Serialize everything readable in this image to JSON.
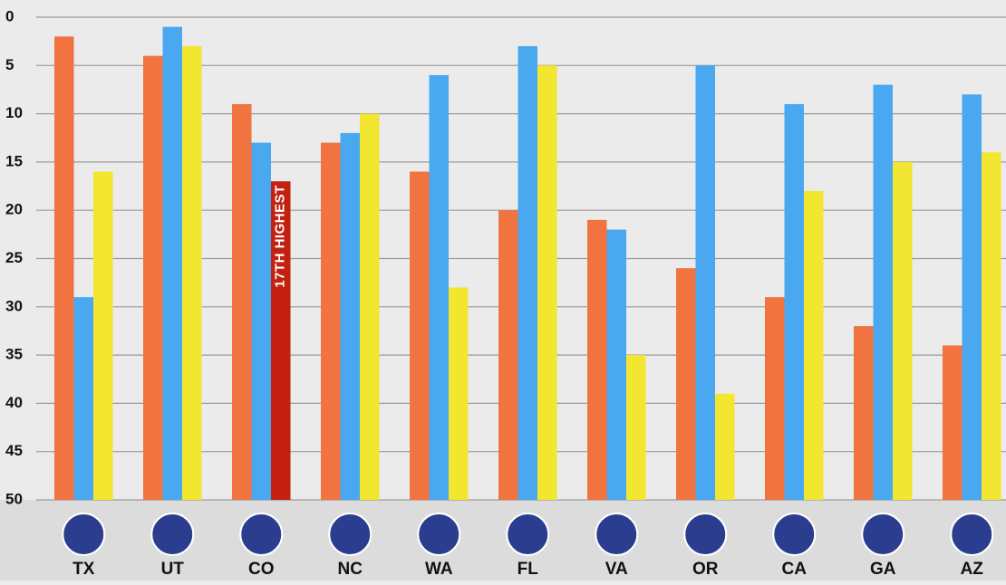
{
  "chart_data": {
    "type": "bar",
    "invert_y": true,
    "grid": true,
    "categories": [
      "TX",
      "UT",
      "CO",
      "NC",
      "WA",
      "FL",
      "VA",
      "OR",
      "CA",
      "GA",
      "AZ"
    ],
    "series": [
      {
        "color": "#f07340",
        "values": [
          2,
          4,
          9,
          13,
          16,
          20,
          21,
          26,
          29,
          32,
          34
        ]
      },
      {
        "color": "#4aa8f0",
        "values": [
          29,
          1,
          13,
          12,
          6,
          3,
          22,
          5,
          9,
          7,
          8
        ]
      },
      {
        "color": "#f2e630",
        "values": [
          16,
          3,
          17,
          10,
          28,
          5,
          35,
          39,
          18,
          15,
          14
        ],
        "colors": [
          "#f2e630",
          "#f2e630",
          "#c3200f",
          "#f2e630",
          "#f2e630",
          "#f2e630",
          "#f2e630",
          "#f2e630",
          "#f2e630",
          "#f2e630",
          "#f2e630"
        ],
        "value_labels": [
          null,
          null,
          "17TH HIGHEST",
          null,
          null,
          null,
          null,
          null,
          null,
          null,
          null
        ]
      }
    ],
    "ylim": [
      0,
      50
    ],
    "yticks": [
      0,
      5,
      10,
      15,
      20,
      25,
      30,
      35,
      40,
      45,
      50
    ]
  }
}
